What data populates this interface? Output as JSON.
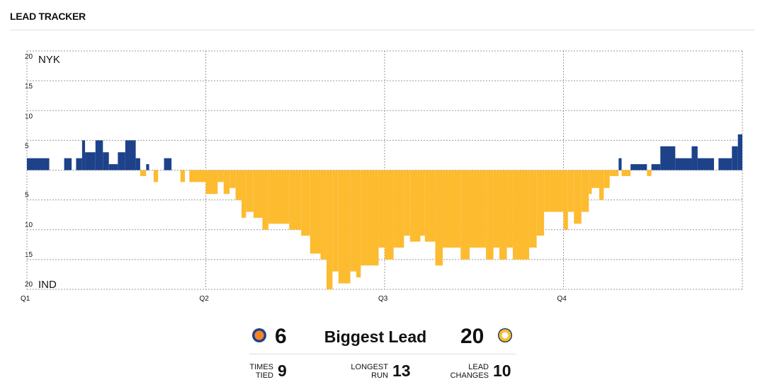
{
  "chart_data": {
    "type": "step",
    "title": "LEAD TRACKER",
    "home_label": "NYK",
    "away_label": "IND",
    "positive_color": "#1d428a",
    "negative_color": "#fdbb30",
    "x": [
      0,
      1.5,
      2.5,
      3.0,
      3.3,
      3.7,
      3.9,
      4.6,
      5.1,
      5.5,
      6.1,
      6.6,
      7.3,
      7.6,
      8.0,
      8.2,
      8.5,
      8.8,
      9.2,
      9.7,
      10.3,
      10.6,
      10.9,
      12,
      12.8,
      13.2,
      13.6,
      14.0,
      14.4,
      14.7,
      15.2,
      15.8,
      16.2,
      17.6,
      18.4,
      19.0,
      19.7,
      20.1,
      20.5,
      20.9,
      21.7,
      22.1,
      22.4,
      23.6,
      24,
      24.6,
      25.3,
      25.7,
      26.4,
      26.7,
      27.4,
      27.9,
      29.1,
      29.7,
      30.8,
      31.3,
      31.7,
      32.2,
      32.6,
      33.7,
      34.2,
      34.7,
      36,
      36.3,
      36.7,
      37.2,
      37.7,
      37.9,
      38.4,
      38.7,
      39.1,
      39.7,
      39.9,
      40.5,
      41.6,
      41.9,
      42.5,
      43.5,
      44.6,
      45.0,
      46.1,
      46.4,
      47.3,
      47.7
    ],
    "values": [
      2,
      0,
      2,
      0,
      2,
      5,
      3,
      5,
      3,
      1,
      3,
      5,
      2,
      -1,
      1,
      0,
      -2,
      0,
      2,
      0,
      -2,
      0,
      -2,
      -4,
      -2,
      -4,
      -3,
      -5,
      -8,
      -7,
      -8,
      -10,
      -9,
      -10,
      -11,
      -14,
      -15,
      -20,
      -17,
      -19,
      -17,
      -18,
      -16,
      -13,
      -15,
      -13,
      -11,
      -12,
      -11,
      -12,
      -16,
      -13,
      -15,
      -13,
      -15,
      -13,
      -15,
      -13,
      -15,
      -13,
      -11,
      -7,
      -10,
      -7,
      -9,
      -7,
      -4,
      -3,
      -5,
      -3,
      -1,
      2,
      -1,
      1,
      -1,
      1,
      4,
      2,
      4,
      2,
      0,
      2,
      4,
      6
    ],
    "xlim": [
      0,
      48
    ],
    "xticks": [
      {
        "value": 0,
        "label": "Q1"
      },
      {
        "value": 12,
        "label": "Q2"
      },
      {
        "value": 24,
        "label": "Q3"
      },
      {
        "value": 36,
        "label": "Q4"
      }
    ],
    "ylim": [
      -20,
      20
    ],
    "yticks": [
      {
        "value": 20,
        "label": "20"
      },
      15,
      10,
      5,
      {
        "value": -5,
        "label": "5"
      },
      {
        "value": -10,
        "label": "10"
      },
      {
        "value": -15,
        "label": "15"
      },
      {
        "value": -20,
        "label": "20"
      }
    ],
    "grid": true
  },
  "summary": {
    "home_biggest_lead": 6,
    "biggest_lead_label": "Biggest Lead",
    "away_biggest_lead": 20,
    "stats": [
      {
        "label": "TIMES TIED",
        "value": 9
      },
      {
        "label": "LONGEST RUN",
        "value": 13
      },
      {
        "label": "LEAD CHANGES",
        "value": 10
      }
    ]
  }
}
